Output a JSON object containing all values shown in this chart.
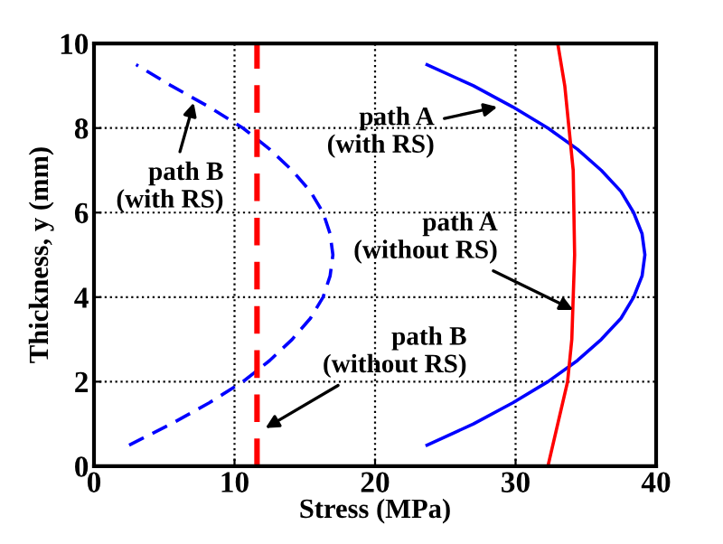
{
  "chart_data": {
    "type": "line",
    "xlabel": "Stress (MPa)",
    "ylabel": "Thickness, y (mm)",
    "xlim": [
      0,
      40
    ],
    "xticks": [
      0,
      10,
      20,
      30,
      40
    ],
    "ylim": [
      0,
      10
    ],
    "yticks": [
      0,
      2,
      4,
      6,
      8,
      10
    ],
    "grid": true,
    "series": [
      {
        "color": "#0000ff",
        "line_style": "solid",
        "x": [
          23.7,
          27.0,
          29.8,
          32.3,
          34.4,
          36.1,
          37.5,
          38.4,
          39.0,
          39.2,
          39.0,
          38.4,
          37.5,
          36.1,
          34.4,
          32.3,
          29.8,
          27.0,
          23.7
        ],
        "values": [
          0.5,
          1,
          1.5,
          2,
          2.5,
          3,
          3.5,
          4,
          4.5,
          5,
          5.5,
          6,
          6.5,
          7,
          7.5,
          8,
          8.5,
          9,
          9.5
        ]
      },
      {
        "color": "#ff0000",
        "line_style": "solid",
        "x": [
          32.3,
          33.0,
          33.7,
          34.0,
          34.2,
          34.1,
          33.8,
          33.5,
          33.0
        ],
        "values": [
          0,
          1,
          2,
          3,
          5,
          7,
          8,
          9,
          10
        ]
      },
      {
        "color": "#0000ff",
        "line_style": "dashed",
        "x": [
          2.5,
          5.5,
          8.2,
          10.6,
          12.5,
          14.1,
          15.4,
          16.3,
          16.8,
          17.0,
          16.8,
          16.3,
          15.4,
          14.1,
          12.5,
          10.6,
          8.2,
          5.5,
          3.0
        ],
        "values": [
          0.5,
          1,
          1.5,
          2,
          2.5,
          3,
          3.5,
          4,
          4.5,
          5,
          5.5,
          6,
          6.5,
          7,
          7.5,
          8,
          8.5,
          9,
          9.5
        ]
      },
      {
        "color": "#ff0000",
        "line_style": "dashed",
        "x": [
          11.6,
          11.6
        ],
        "values": [
          0,
          10
        ]
      }
    ],
    "annotations": [
      {
        "text": "path A\n(with RS)",
        "x": 28.7,
        "y": 8.5
      },
      {
        "text": "path A\n(without RS)",
        "x": 34.1,
        "y": 3.7
      },
      {
        "text": "path B\n(with RS)",
        "x": 7.1,
        "y": 8.6
      },
      {
        "text": "path B\n(without RS)",
        "x": 12.2,
        "y": 0.9
      }
    ]
  }
}
